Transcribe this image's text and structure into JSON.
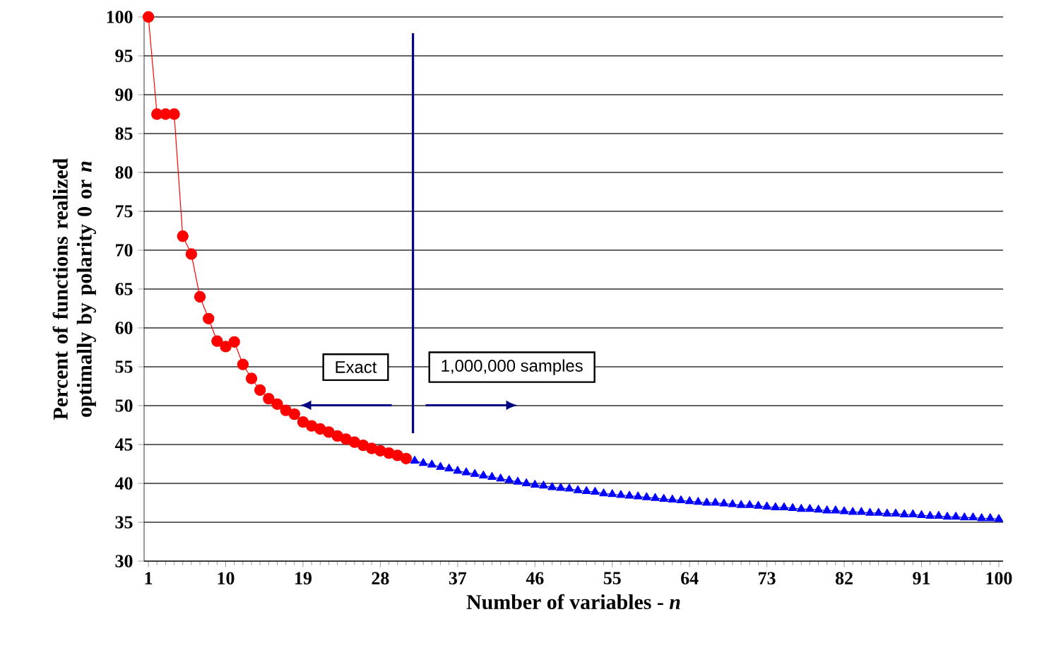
{
  "chart_data": {
    "type": "line",
    "xlabel": "Number of variables - *n*",
    "ylabel": "Percent of functions realized optimally by polarity 0 or *n*",
    "xlim": [
      0.5,
      100.5
    ],
    "xticks": [
      1,
      10,
      19,
      28,
      37,
      46,
      55,
      64,
      73,
      82,
      91,
      100
    ],
    "ylim": [
      30,
      100
    ],
    "yticks": [
      30,
      35,
      40,
      45,
      50,
      55,
      60,
      65,
      70,
      75,
      80,
      85,
      90,
      95,
      100
    ],
    "grid": "y",
    "series": [
      {
        "color": "#ff0000",
        "marker": "circle",
        "x": [
          1,
          2,
          3,
          4,
          5,
          6,
          7,
          8,
          9,
          10,
          11,
          12,
          13,
          14,
          15,
          16,
          17,
          18,
          19,
          20,
          21,
          22,
          23,
          24,
          25,
          26,
          27,
          28,
          29,
          30,
          31
        ],
        "values": [
          100,
          87.5,
          87.5,
          87.5,
          71.8,
          69.5,
          64,
          61.2,
          58.3,
          57.6,
          58.2,
          55.3,
          53.5,
          52,
          50.9,
          50.2,
          49.4,
          48.9,
          47.9,
          47.4,
          47,
          46.6,
          46.1,
          45.7,
          45.3,
          44.9,
          44.5,
          44.2,
          43.9,
          43.6,
          43.2
        ]
      },
      {
        "color": "#0000ff",
        "marker": "triangle",
        "x": [
          32,
          33,
          34,
          35,
          36,
          37,
          38,
          39,
          40,
          41,
          42,
          43,
          44,
          45,
          46,
          47,
          48,
          49,
          50,
          51,
          52,
          53,
          54,
          55,
          56,
          57,
          58,
          59,
          60,
          61,
          62,
          63,
          64,
          65,
          66,
          67,
          68,
          69,
          70,
          71,
          72,
          73,
          74,
          75,
          76,
          77,
          78,
          79,
          80,
          81,
          82,
          83,
          84,
          85,
          86,
          87,
          88,
          89,
          90,
          91,
          92,
          93,
          94,
          95,
          96,
          97,
          98,
          99,
          100
        ],
        "values": [
          42.9,
          42.6,
          42.4,
          42.1,
          41.9,
          41.6,
          41.4,
          41.2,
          41.0,
          40.8,
          40.6,
          40.4,
          40.2,
          40.0,
          39.8,
          39.7,
          39.5,
          39.4,
          39.3,
          39.1,
          39.0,
          38.9,
          38.7,
          38.6,
          38.5,
          38.4,
          38.3,
          38.2,
          38.1,
          38.0,
          37.9,
          37.8,
          37.7,
          37.6,
          37.5,
          37.5,
          37.4,
          37.3,
          37.2,
          37.2,
          37.1,
          37.0,
          36.9,
          36.9,
          36.8,
          36.7,
          36.7,
          36.6,
          36.5,
          36.5,
          36.4,
          36.3,
          36.3,
          36.2,
          36.2,
          36.1,
          36.1,
          36.0,
          36.0,
          35.9,
          35.8,
          35.8,
          35.7,
          35.7,
          35.6,
          35.6,
          35.5,
          35.5,
          35.4
        ]
      }
    ],
    "ref_lines": [
      {
        "axis": "x",
        "value": 31.8,
        "color": "#000080"
      }
    ],
    "annotations": [
      "Exact",
      "1,000,000 samples"
    ]
  }
}
